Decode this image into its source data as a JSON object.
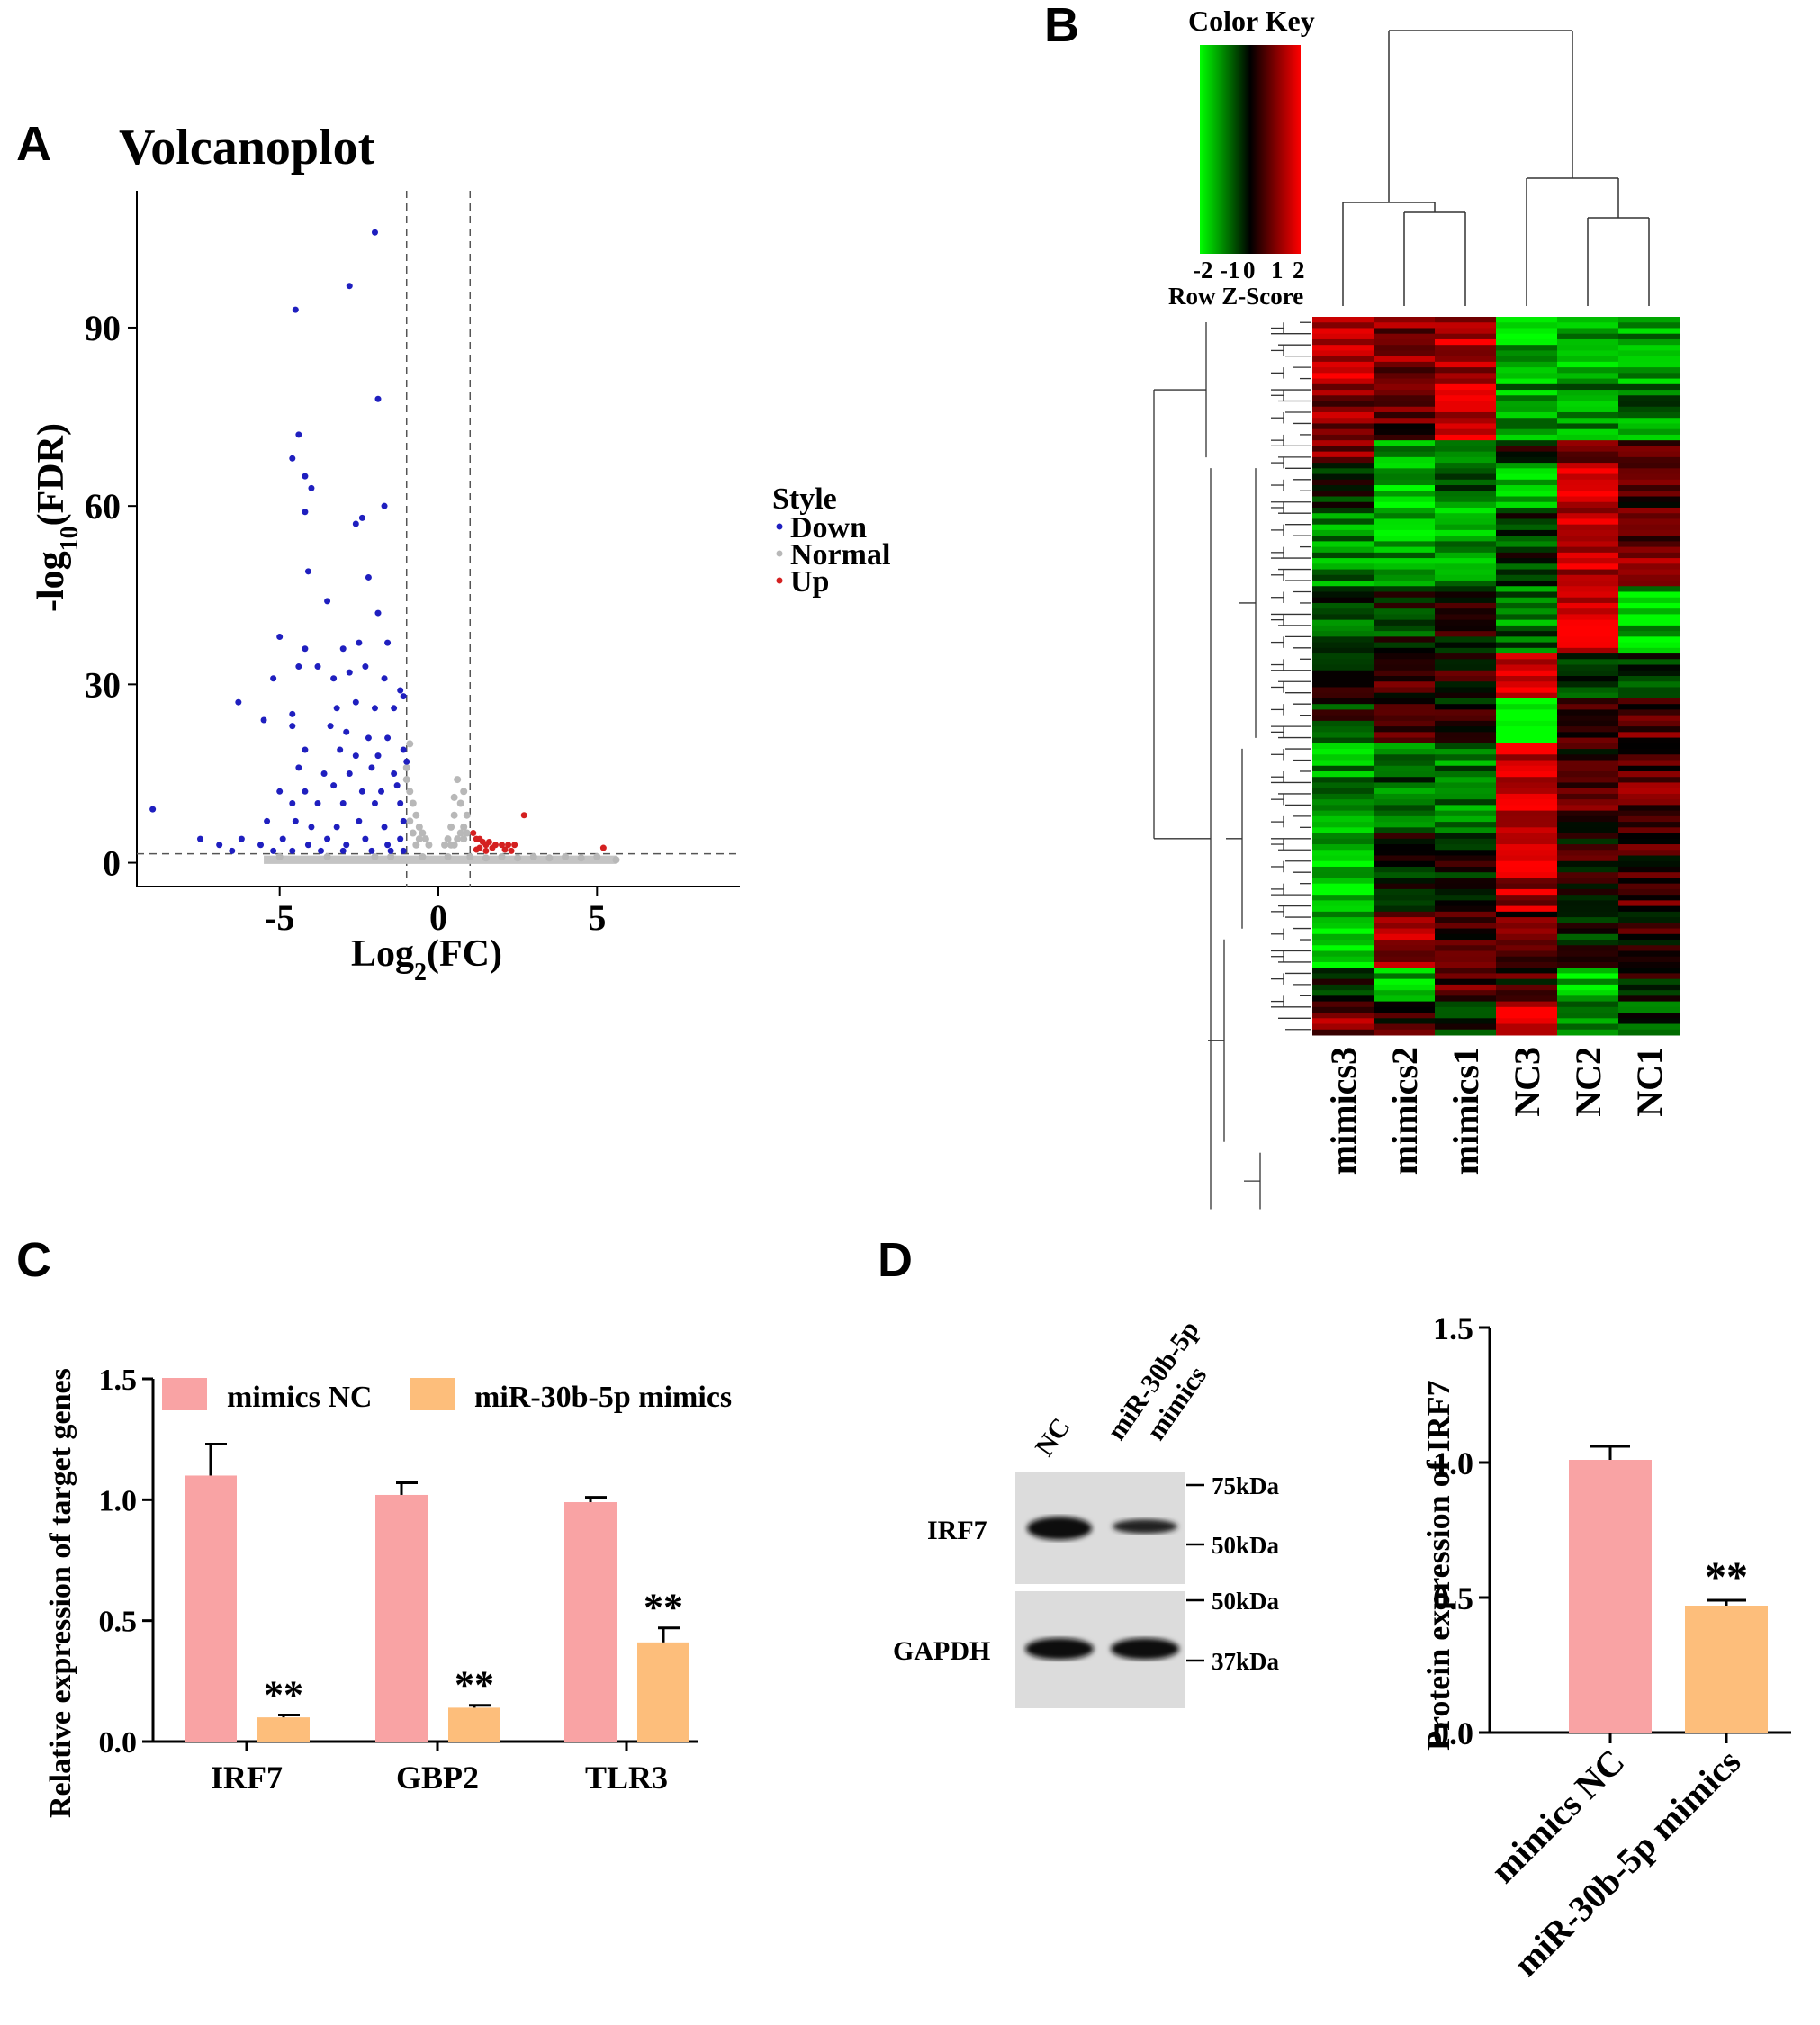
{
  "panels": {
    "A": {
      "letter": "A",
      "chart_data": {
        "type": "scatter",
        "title": "Volcanoplot",
        "xlabel_base": "Log",
        "xlabel_sub": "2",
        "xlabel_rest": "(FC)",
        "ylabel_base": "-log",
        "ylabel_sub": "10",
        "ylabel_rest": "(FDR)",
        "xlim": [
          -9.5,
          9.5
        ],
        "ylim": [
          -4,
          113
        ],
        "xticks": [
          -5,
          0,
          5
        ],
        "yticks": [
          0,
          30,
          60,
          90
        ],
        "fc_thresholds": [
          -1,
          1
        ],
        "fdr_threshold": 1.5,
        "legend_title": "Style",
        "legend": [
          {
            "label": "Down",
            "color": "#1f1fbf"
          },
          {
            "label": "Normal",
            "color": "#b8b8b8"
          },
          {
            "label": "Up",
            "color": "#d42020"
          }
        ],
        "down_points": [
          [
            -2.0,
            106
          ],
          [
            -2.8,
            97
          ],
          [
            -4.5,
            93
          ],
          [
            -1.9,
            78
          ],
          [
            -4.4,
            72
          ],
          [
            -4.6,
            68
          ],
          [
            -4.2,
            65
          ],
          [
            -4.0,
            63
          ],
          [
            -2.6,
            57
          ],
          [
            -2.4,
            58
          ],
          [
            -1.7,
            60
          ],
          [
            -4.2,
            59
          ],
          [
            -4.1,
            49
          ],
          [
            -2.2,
            48
          ],
          [
            -3.5,
            44
          ],
          [
            -1.9,
            42
          ],
          [
            -5.0,
            38
          ],
          [
            -4.2,
            36
          ],
          [
            -3.0,
            36
          ],
          [
            -2.5,
            37
          ],
          [
            -1.6,
            37
          ],
          [
            -5.2,
            31
          ],
          [
            -4.4,
            33
          ],
          [
            -3.8,
            33
          ],
          [
            -3.3,
            31
          ],
          [
            -2.8,
            32
          ],
          [
            -2.3,
            33
          ],
          [
            -1.7,
            31
          ],
          [
            -1.2,
            29
          ],
          [
            -1.1,
            28
          ],
          [
            -6.3,
            27
          ],
          [
            -4.6,
            25
          ],
          [
            -3.2,
            26
          ],
          [
            -2.6,
            27
          ],
          [
            -2.0,
            26
          ],
          [
            -1.4,
            26
          ],
          [
            -5.5,
            24
          ],
          [
            -4.6,
            23
          ],
          [
            -3.4,
            23
          ],
          [
            -2.9,
            22
          ],
          [
            -2.2,
            21
          ],
          [
            -1.6,
            21
          ],
          [
            -1.1,
            19
          ],
          [
            -4.2,
            19
          ],
          [
            -3.1,
            19
          ],
          [
            -2.6,
            18
          ],
          [
            -1.9,
            18
          ],
          [
            -4.4,
            16
          ],
          [
            -3.6,
            15
          ],
          [
            -2.8,
            15
          ],
          [
            -2.1,
            16
          ],
          [
            -1.4,
            15
          ],
          [
            -1.0,
            17
          ],
          [
            -5.0,
            12
          ],
          [
            -4.2,
            12
          ],
          [
            -3.3,
            13
          ],
          [
            -2.4,
            12
          ],
          [
            -1.8,
            12
          ],
          [
            -1.3,
            13
          ],
          [
            -9.0,
            9
          ],
          [
            -4.6,
            10
          ],
          [
            -3.8,
            10
          ],
          [
            -3.0,
            10
          ],
          [
            -2.0,
            10
          ],
          [
            -1.2,
            10
          ],
          [
            -5.4,
            7
          ],
          [
            -4.5,
            7
          ],
          [
            -4.0,
            6
          ],
          [
            -3.2,
            6
          ],
          [
            -2.5,
            7
          ],
          [
            -1.7,
            6
          ],
          [
            -1.1,
            7
          ],
          [
            -7.5,
            4
          ],
          [
            -6.2,
            4
          ],
          [
            -5.6,
            3
          ],
          [
            -4.9,
            4
          ],
          [
            -4.1,
            3
          ],
          [
            -3.5,
            4
          ],
          [
            -2.9,
            3
          ],
          [
            -2.3,
            4
          ],
          [
            -1.6,
            3
          ],
          [
            -1.2,
            4
          ],
          [
            -6.9,
            3
          ],
          [
            -6.5,
            2
          ],
          [
            -5.2,
            2
          ],
          [
            -4.6,
            2
          ],
          [
            -3.7,
            2
          ],
          [
            -3.0,
            2
          ],
          [
            -2.1,
            2
          ],
          [
            -1.5,
            2
          ],
          [
            -1.1,
            2
          ]
        ],
        "up_points": [
          [
            2.7,
            8
          ],
          [
            5.2,
            2.5
          ],
          [
            1.1,
            5
          ],
          [
            1.2,
            4
          ],
          [
            1.3,
            4
          ],
          [
            1.4,
            3.5
          ],
          [
            1.5,
            3
          ],
          [
            1.6,
            3.5
          ],
          [
            1.8,
            3
          ],
          [
            2.0,
            3
          ],
          [
            2.2,
            3
          ],
          [
            2.4,
            3
          ],
          [
            1.3,
            2.5
          ],
          [
            1.7,
            2.5
          ],
          [
            2.1,
            2.2
          ],
          [
            1.2,
            2.2
          ],
          [
            1.5,
            2.0
          ],
          [
            2.3,
            2.0
          ]
        ],
        "normal_points": [
          [
            -1.0,
            16
          ],
          [
            -0.9,
            12
          ],
          [
            -0.8,
            10
          ],
          [
            -0.7,
            8
          ],
          [
            -0.6,
            6
          ],
          [
            -0.5,
            5
          ],
          [
            -0.4,
            4
          ],
          [
            -0.3,
            3
          ],
          [
            -0.9,
            7
          ],
          [
            -0.8,
            5
          ],
          [
            -0.6,
            4
          ],
          [
            -0.7,
            3
          ],
          [
            0.6,
            14
          ],
          [
            0.7,
            10
          ],
          [
            0.5,
            8
          ],
          [
            0.4,
            6
          ],
          [
            0.8,
            6
          ],
          [
            0.9,
            5
          ],
          [
            0.3,
            4
          ],
          [
            0.6,
            4
          ],
          [
            0.2,
            3
          ],
          [
            0.5,
            3
          ],
          [
            0.9,
            8
          ],
          [
            0.7,
            5
          ],
          [
            0.8,
            4
          ],
          [
            0.4,
            3
          ],
          [
            -0.9,
            20
          ],
          [
            -1.0,
            14
          ],
          [
            0.8,
            12
          ],
          [
            0.5,
            11
          ],
          [
            2.0,
            1
          ],
          [
            3.0,
            1
          ],
          [
            4.0,
            1
          ],
          [
            5.0,
            1
          ],
          [
            5.6,
            0.5
          ],
          [
            -5.0,
            1
          ],
          [
            -3.5,
            1
          ],
          [
            -2.0,
            1
          ],
          [
            -1.5,
            1
          ],
          [
            -0.5,
            1
          ],
          [
            0.3,
            1
          ],
          [
            1.0,
            1
          ],
          [
            1.5,
            0.8
          ],
          [
            2.5,
            0.8
          ],
          [
            3.5,
            0.8
          ],
          [
            4.5,
            0.8
          ]
        ],
        "normal_band_x": [
          -5.5,
          5.6
        ]
      }
    },
    "B": {
      "letter": "B",
      "chart_data": {
        "type": "heatmap",
        "color_key_title": "Color Key",
        "color_key_ticks": [
          "-2",
          "-1",
          "0",
          "1",
          "2"
        ],
        "color_key_label": "Row Z-Score",
        "columns": [
          "mimics3",
          "mimics2",
          "mimics1",
          "NC3",
          "NC2",
          "NC1"
        ],
        "colors": {
          "low": "#00ff00",
          "mid": "#000000",
          "high": "#ff0000"
        },
        "row_blocks": [
          {
            "rows": 12,
            "values": [
              1.6,
              1.0,
              1.4,
              -1.5,
              -1.4,
              -1.3
            ]
          },
          {
            "rows": 10,
            "values": [
              1.1,
              0.7,
              1.7,
              -1.2,
              -1.1,
              -1.0
            ]
          },
          {
            "rows": 4,
            "values": [
              1.2,
              -1.1,
              -0.8,
              0.1,
              1.2,
              0.4
            ]
          },
          {
            "rows": 8,
            "values": [
              -0.1,
              -1.6,
              -0.9,
              -1.8,
              1.5,
              0.6
            ]
          },
          {
            "rows": 14,
            "values": [
              -1.1,
              -1.3,
              -1.2,
              -0.4,
              1.4,
              0.9
            ]
          },
          {
            "rows": 12,
            "values": [
              -0.5,
              -0.3,
              0.2,
              -0.9,
              1.8,
              -1.4
            ]
          },
          {
            "rows": 8,
            "values": [
              0.1,
              0.5,
              0.3,
              1.7,
              -0.2,
              -0.5
            ]
          },
          {
            "rows": 8,
            "values": [
              -0.2,
              0.3,
              0.1,
              -2.0,
              0.4,
              0.6
            ]
          },
          {
            "rows": 16,
            "values": [
              -1.2,
              -0.7,
              -0.9,
              1.6,
              0.5,
              0.7
            ]
          },
          {
            "rows": 14,
            "values": [
              -1.5,
              -0.2,
              -0.1,
              1.4,
              0.2,
              0.5
            ]
          },
          {
            "rows": 10,
            "values": [
              -1.6,
              1.2,
              0.4,
              0.6,
              -0.1,
              0.2
            ]
          },
          {
            "rows": 6,
            "values": [
              -0.4,
              -1.5,
              0.6,
              0.4,
              -1.4,
              0.1
            ]
          },
          {
            "rows": 6,
            "values": [
              1.0,
              0.4,
              -0.4,
              1.6,
              -0.8,
              -0.6
            ]
          }
        ]
      }
    },
    "C": {
      "letter": "C",
      "chart_data": {
        "type": "bar",
        "ylabel": "Relative expression of target genes",
        "categories": [
          "IRF7",
          "GBP2",
          "TLR3"
        ],
        "series": [
          {
            "name": "mimics NC",
            "values": [
              1.1,
              1.02,
              0.99
            ],
            "errors": [
              0.13,
              0.05,
              0.02
            ],
            "color": "#f9a3a4"
          },
          {
            "name": "miR-30b-5p mimics",
            "values": [
              0.1,
              0.14,
              0.41
            ],
            "errors": [
              0.01,
              0.01,
              0.06
            ],
            "color": "#fdbe7b"
          }
        ],
        "ylim": [
          0,
          1.5
        ],
        "yticks": [
          "0.0",
          "0.5",
          "1.0",
          "1.5"
        ],
        "annotations": [
          "**",
          "**",
          "**"
        ]
      }
    },
    "D": {
      "letter": "D",
      "blot": {
        "lanes": [
          "NC",
          "miR-30b-5p\nmimics"
        ],
        "rows": [
          "IRF7",
          "GAPDH"
        ],
        "markers_top": [
          "75kDa",
          "50kDa"
        ],
        "markers_bottom": [
          "50kDa",
          "37kDa"
        ]
      },
      "chart_data": {
        "type": "bar",
        "ylabel": "Protein expression of IRF7",
        "categories": [
          "mimics NC",
          "miR-30b-5p mimics"
        ],
        "values": [
          1.01,
          0.47
        ],
        "errors": [
          0.05,
          0.02
        ],
        "colors": [
          "#f9a3a4",
          "#fdbe7b"
        ],
        "ylim": [
          0,
          1.5
        ],
        "yticks": [
          "0.0",
          "0.5",
          "1.0",
          "1.5"
        ],
        "annotations": [
          "",
          "**"
        ]
      }
    }
  }
}
